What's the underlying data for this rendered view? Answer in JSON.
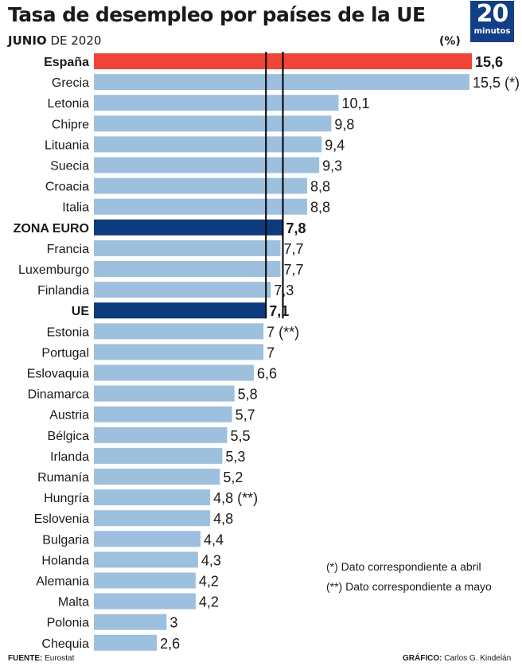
{
  "title": "Tasa de desempleo por países de la UE",
  "subtitle": {
    "month": "JUNIO",
    "rest": "DE 2020"
  },
  "unit": "(%)",
  "logo": {
    "number": "20",
    "word": "minutos"
  },
  "footnotes": [
    {
      "mark": "(*)",
      "text": "Dato correspondiente a abril"
    },
    {
      "mark": "(**)",
      "text": "Dato correspondiente a mayo"
    }
  ],
  "source": {
    "label": "FUENTE:",
    "value": "Eurostat"
  },
  "credit": {
    "label": "GRÁFICO:",
    "value": "Carlos G. Kindelán"
  },
  "colors": {
    "default": "#9ec0df",
    "spain": "#ef4437",
    "aggregate": "#0d3b7e",
    "reference_lines": "#000000"
  },
  "chart_data": {
    "type": "bar",
    "orientation": "horizontal",
    "title": "Tasa de desempleo por países de la UE",
    "subtitle": "JUNIO DE 2020",
    "unit": "(%)",
    "grid": false,
    "reference_lines": [
      7.1,
      7.8
    ],
    "categories": [
      "España",
      "Grecia",
      "Letonia",
      "Chipre",
      "Lituania",
      "Suecia",
      "Croacia",
      "Italia",
      "ZONA EURO",
      "Francia",
      "Luxemburgo",
      "Finlandia",
      "UE",
      "Estonia",
      "Portugal",
      "Eslovaquia",
      "Dinamarca",
      "Austria",
      "Bélgica",
      "Irlanda",
      "Rumanía",
      "Hungría",
      "Eslovenia",
      "Bulgaria",
      "Holanda",
      "Alemania",
      "Malta",
      "Polonia",
      "Chequia"
    ],
    "values": [
      15.6,
      15.5,
      10.1,
      9.8,
      9.4,
      9.3,
      8.8,
      8.8,
      7.8,
      7.7,
      7.7,
      7.3,
      7.1,
      7,
      7,
      6.6,
      5.8,
      5.7,
      5.5,
      5.3,
      5.2,
      4.8,
      4.8,
      4.4,
      4.3,
      4.2,
      4.2,
      3,
      2.6
    ],
    "value_labels": [
      "15,6",
      "15,5",
      "10,1",
      "9,8",
      "9,4",
      "9,3",
      "8,8",
      "8,8",
      "7,8",
      "7,7",
      "7,7",
      "7,3",
      "7,1",
      "7",
      "7",
      "6,6",
      "5,8",
      "5,7",
      "5,5",
      "5,3",
      "5,2",
      "4,8",
      "4,8",
      "4,4",
      "4,3",
      "4,2",
      "4,2",
      "3",
      "2,6"
    ],
    "notes": [
      "",
      "(*)",
      "",
      "",
      "",
      "",
      "",
      "",
      "",
      "",
      "",
      "",
      "",
      "(**)",
      "",
      "",
      "",
      "",
      "",
      "",
      "",
      "(**)",
      "",
      "",
      "",
      "",
      "",
      "",
      ""
    ],
    "highlight": [
      "spain",
      "default",
      "default",
      "default",
      "default",
      "default",
      "default",
      "default",
      "aggregate",
      "default",
      "default",
      "default",
      "aggregate",
      "default",
      "default",
      "default",
      "default",
      "default",
      "default",
      "default",
      "default",
      "default",
      "default",
      "default",
      "default",
      "default",
      "default",
      "default",
      "default"
    ]
  }
}
